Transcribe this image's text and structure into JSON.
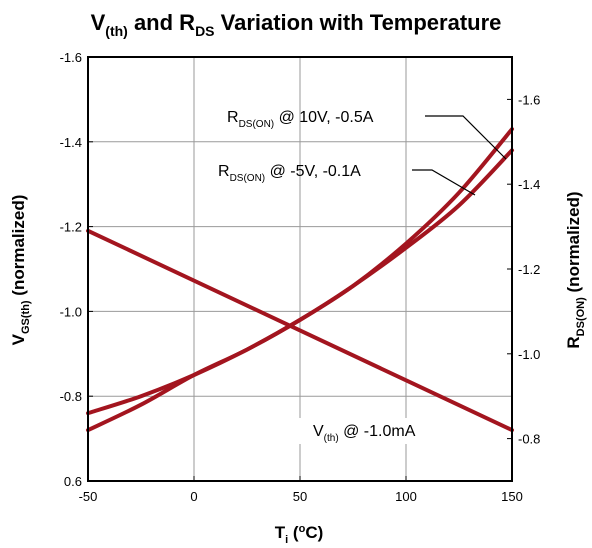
{
  "chart_data": {
    "type": "line",
    "title": {
      "pre": "V",
      "sub1": "(th)",
      "mid": " and R",
      "sub2": "DS",
      "post": " Variation with Temperature"
    },
    "xlabel": {
      "main": "T",
      "sub": "i",
      "rest": " (",
      "sup": "o",
      "end": "C)"
    },
    "ylabel_left": {
      "main": "V",
      "sub": "GS(th)",
      "rest": " (normalized)"
    },
    "ylabel_right": {
      "main": "R",
      "sub": "DS(ON)",
      "rest": " (normalized)"
    },
    "xlim": [
      -50,
      150
    ],
    "ylim_left": [
      0.6,
      1.6
    ],
    "ylim_right": [
      0.7,
      1.7
    ],
    "x_ticks": [
      "-50",
      "0",
      "50",
      "100",
      "150"
    ],
    "y_ticks_left": [
      "0.6",
      "-0.8",
      "-1.0",
      "-1.2",
      "-1.4",
      "-1.6"
    ],
    "y_ticks_right": [
      "-0.8",
      "-1.0",
      "-1.2",
      "-1.4",
      "-1.6"
    ],
    "grid": true,
    "series": [
      {
        "name_main": "V",
        "name_sub": "(th)",
        "name_rest": " @ -1.0mA",
        "axis": "left",
        "color": "#a3151f",
        "x": [
          -50,
          150
        ],
        "y": [
          1.19,
          0.72
        ]
      },
      {
        "name_main": "R",
        "name_sub": "DS(ON)",
        "name_rest": " @ 10V, -0.5A",
        "axis": "right",
        "color": "#a3151f",
        "x": [
          -50,
          -25,
          0,
          25,
          50,
          75,
          100,
          125,
          150
        ],
        "y": [
          0.82,
          0.88,
          0.95,
          1.01,
          1.08,
          1.16,
          1.26,
          1.38,
          1.53
        ]
      },
      {
        "name_main": "R",
        "name_sub": "DS(ON)",
        "name_rest": " @ -5V, -0.1A",
        "axis": "right",
        "color": "#a3151f",
        "x": [
          -50,
          -25,
          0,
          25,
          50,
          75,
          100,
          125,
          150
        ],
        "y": [
          0.86,
          0.9,
          0.95,
          1.01,
          1.08,
          1.16,
          1.25,
          1.35,
          1.48
        ]
      }
    ]
  }
}
